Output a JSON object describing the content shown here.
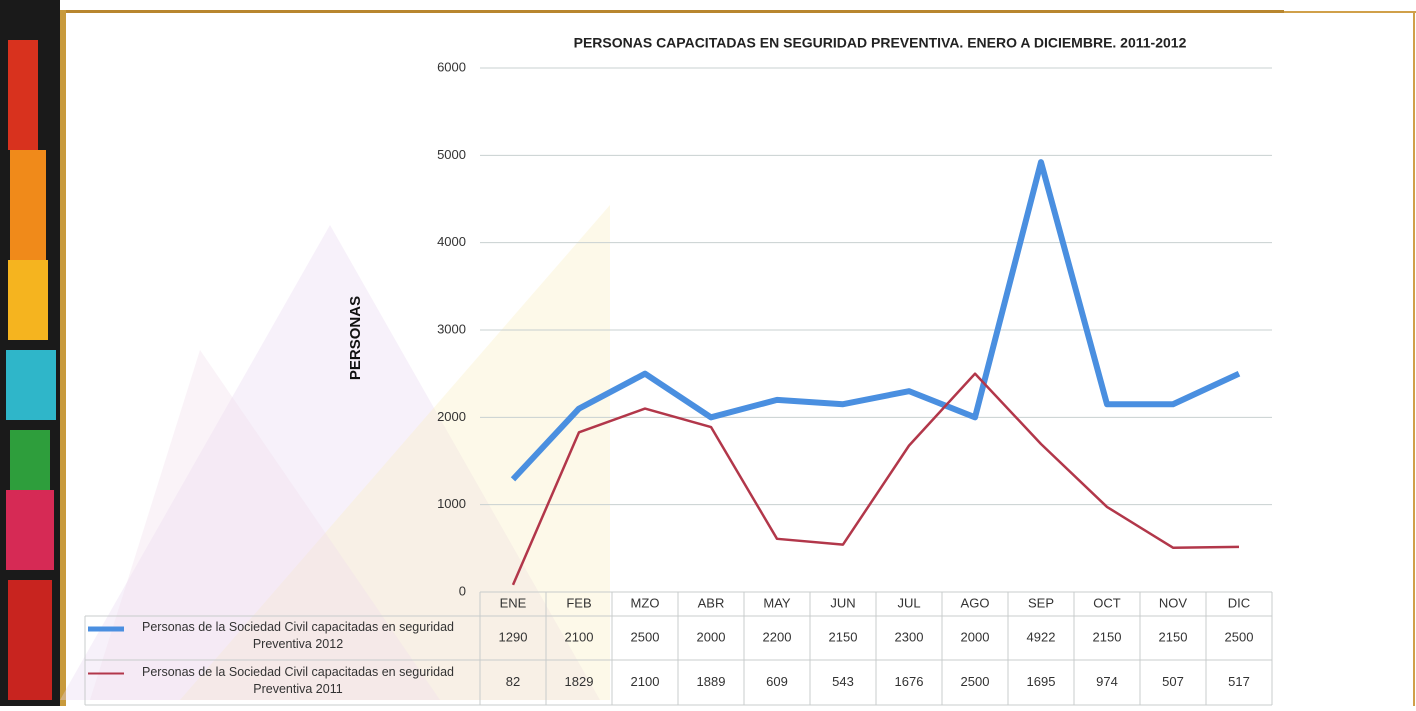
{
  "chart_data": {
    "type": "line",
    "title": "PERSONAS CAPACITADAS EN SEGURIDAD PREVENTIVA. ENERO A DICIEMBRE. 2011-2012",
    "y_label": "PERSONAS",
    "categories": [
      "ENE",
      "FEB",
      "MZO",
      "ABR",
      "MAY",
      "JUN",
      "JUL",
      "AGO",
      "SEP",
      "OCT",
      "NOV",
      "DIC"
    ],
    "series": [
      {
        "name": "Personas de la Sociedad Civil capacitadas en seguridad Preventiva 2012",
        "color": "#4a8fe0",
        "values": [
          1290,
          2100,
          2500,
          2000,
          2200,
          2150,
          2300,
          2000,
          4922,
          2150,
          2150,
          2500
        ]
      },
      {
        "name": "Personas de la Sociedad Civil capacitadas en seguridad Preventiva 2011",
        "color": "#b2374a",
        "values": [
          82,
          1829,
          2100,
          1889,
          609,
          543,
          1676,
          2500,
          1695,
          974,
          507,
          517
        ]
      }
    ],
    "ylim": [
      0,
      6000
    ],
    "yticks": [
      0,
      1000,
      2000,
      3000,
      4000,
      5000,
      6000
    ],
    "grid": true
  }
}
